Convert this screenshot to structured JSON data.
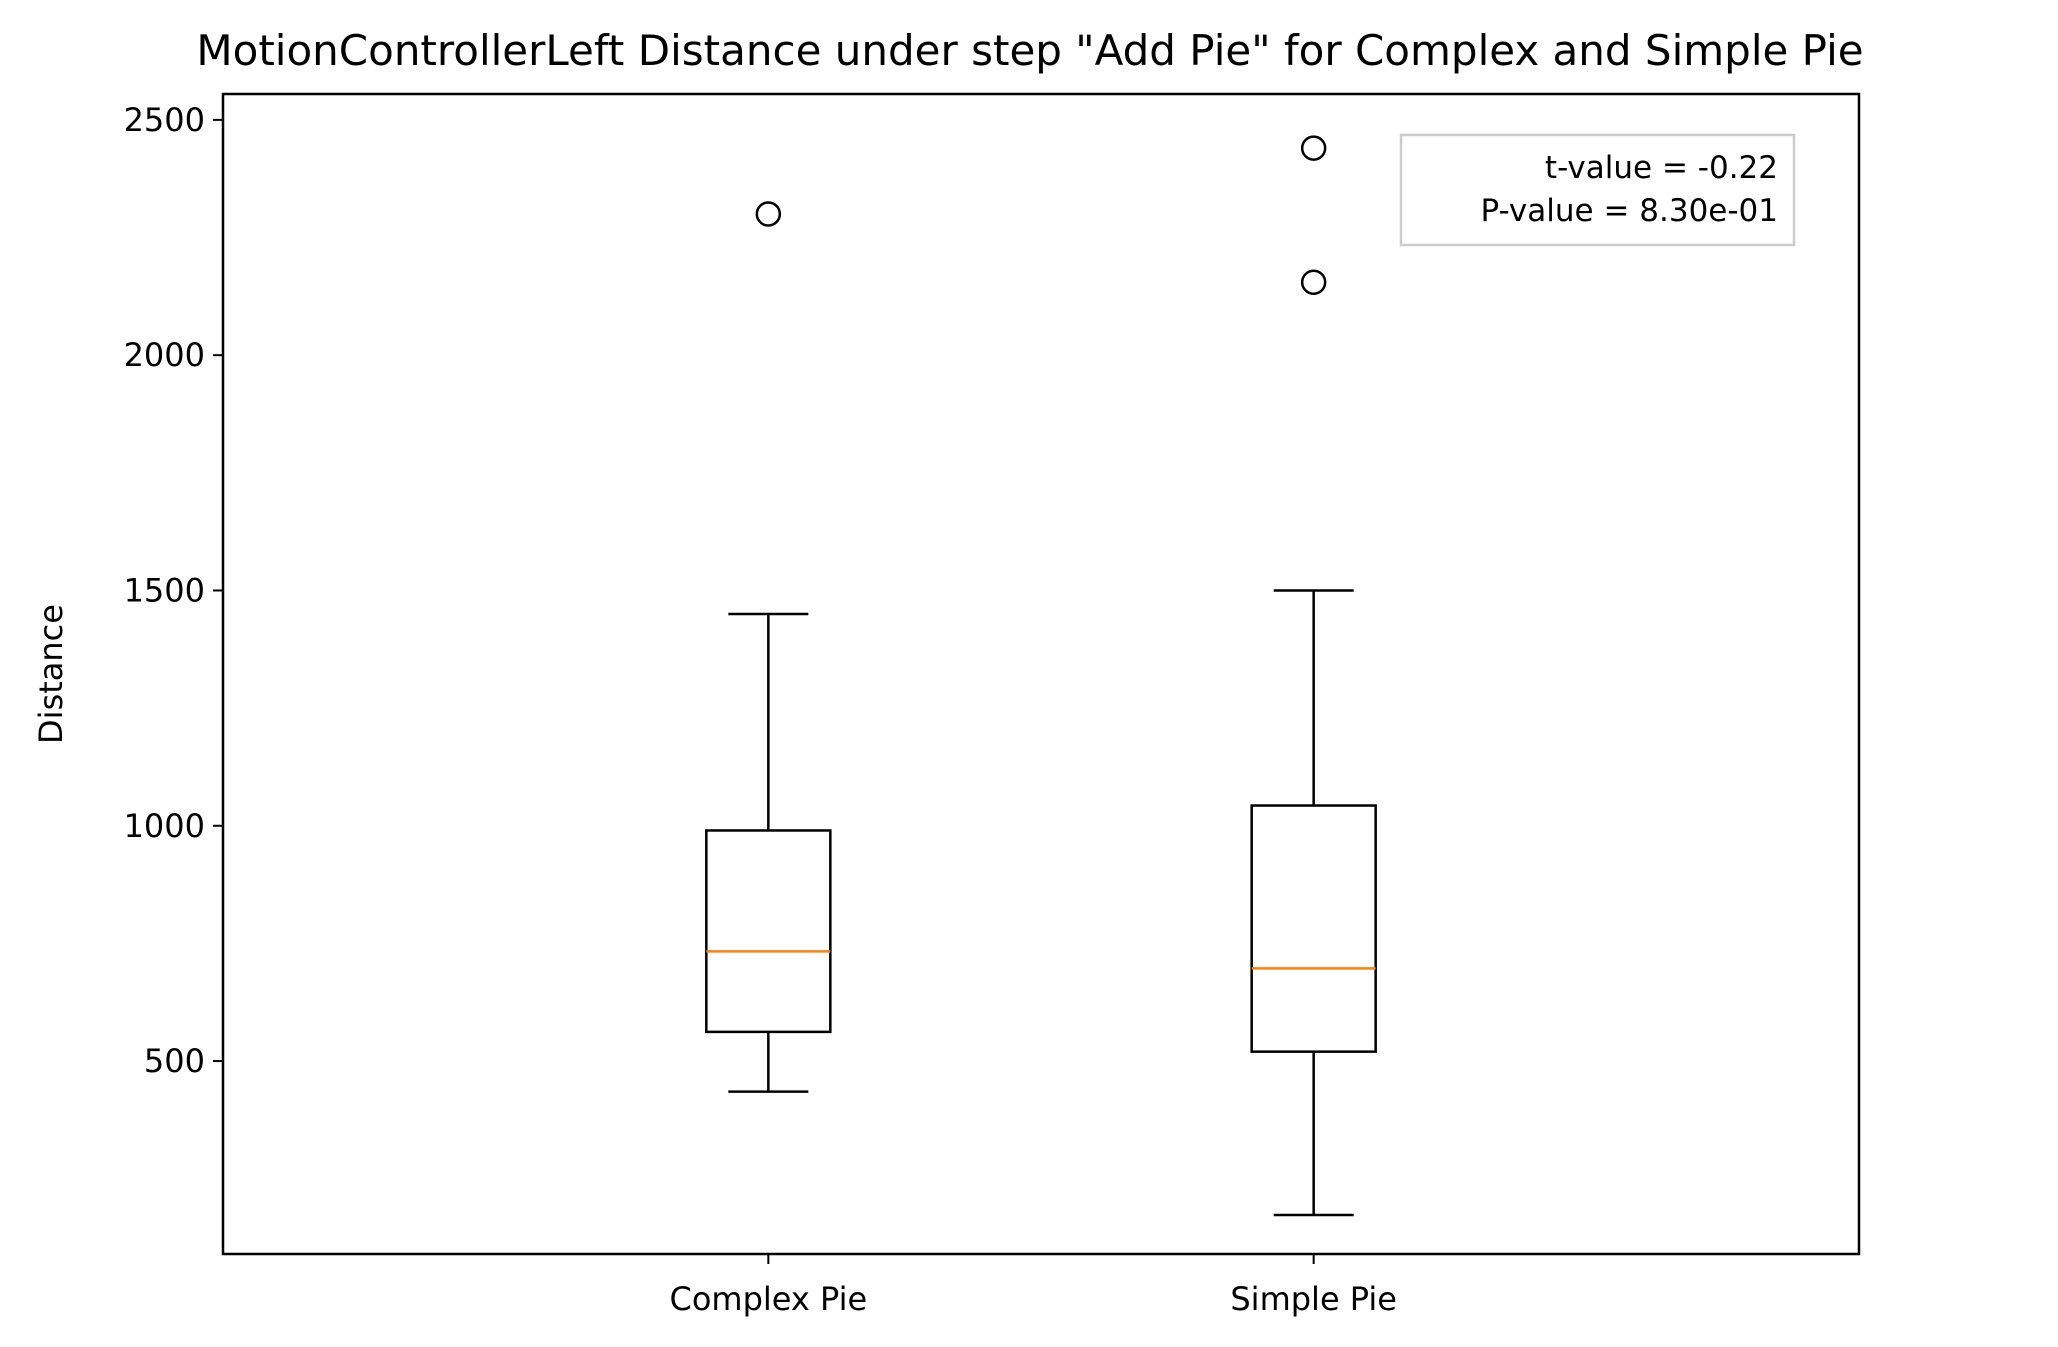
{
  "chart_data": {
    "type": "box",
    "title": "MotionControllerLeft Distance under step \"Add Pie\" for Complex and Simple Pie",
    "xlabel": "",
    "ylabel": "Distance",
    "ylim": [
      90,
      2555
    ],
    "yticks": [
      500,
      1000,
      1500,
      2000,
      2500
    ],
    "ytick_labels": [
      "500",
      "1000",
      "1500",
      "2000",
      "2500"
    ],
    "categories": [
      "Complex Pie",
      "Simple Pie"
    ],
    "boxes": [
      {
        "name": "Complex Pie",
        "whisker_low": 435,
        "q1": 562,
        "median": 733,
        "q3": 990,
        "whisker_high": 1450,
        "outliers": [
          2300
        ]
      },
      {
        "name": "Simple Pie",
        "whisker_low": 173,
        "q1": 520,
        "median": 697,
        "q3": 1043,
        "whisker_high": 1500,
        "outliers": [
          2155,
          2440
        ]
      }
    ],
    "annotation": {
      "lines": [
        "t-value = -0.22",
        "P-value = 8.30e-01"
      ],
      "placement": "top-right"
    },
    "colors": {
      "box": "#000000",
      "median": "#ff7f0e",
      "annotation_border": "#cccccc"
    },
    "grid": false,
    "legend": "none"
  }
}
